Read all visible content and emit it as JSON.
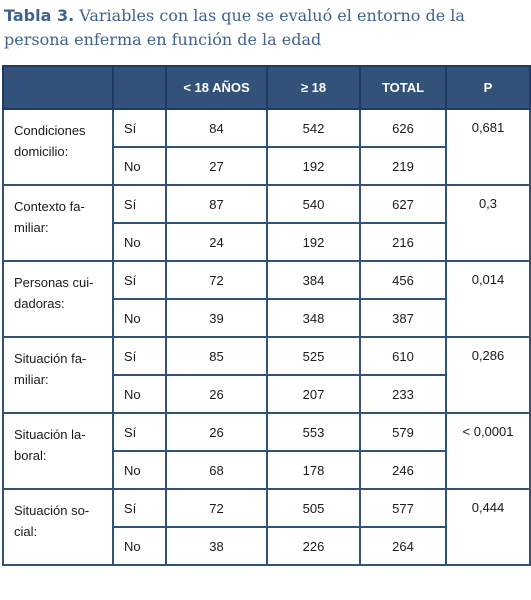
{
  "caption": {
    "label": "Tabla 3.",
    "text": " Variables con las que se evaluó el entorno de la persona enferma en función de la edad"
  },
  "headers": [
    "",
    "",
    "< 18 AÑOS",
    "≥ 18",
    "TOTAL",
    "P"
  ],
  "groups": [
    {
      "label": "Condiciones domicilio:",
      "p": "0,681",
      "rows": [
        {
          "opt": "Sí",
          "lt18": "84",
          "ge18": "542",
          "total": "626"
        },
        {
          "opt": "No",
          "lt18": "27",
          "ge18": "192",
          "total": "219"
        }
      ]
    },
    {
      "label": "Contexto fa-miliar:",
      "p": "0,3",
      "rows": [
        {
          "opt": "Sí",
          "lt18": "87",
          "ge18": "540",
          "total": "627"
        },
        {
          "opt": "No",
          "lt18": "24",
          "ge18": "192",
          "total": "216"
        }
      ]
    },
    {
      "label": "Personas cui-dadoras:",
      "p": "0,014",
      "rows": [
        {
          "opt": "Sí",
          "lt18": "72",
          "ge18": "384",
          "total": "456"
        },
        {
          "opt": "No",
          "lt18": "39",
          "ge18": "348",
          "total": "387"
        }
      ]
    },
    {
      "label": "Situación fa-miliar:",
      "p": "0,286",
      "rows": [
        {
          "opt": "Sí",
          "lt18": "85",
          "ge18": "525",
          "total": "610"
        },
        {
          "opt": "No",
          "lt18": "26",
          "ge18": "207",
          "total": "233"
        }
      ]
    },
    {
      "label": "Situación la-boral:",
      "p": "< 0,0001",
      "rows": [
        {
          "opt": "Sí",
          "lt18": "26",
          "ge18": "553",
          "total": "579"
        },
        {
          "opt": "No",
          "lt18": "68",
          "ge18": "178",
          "total": "246"
        }
      ]
    },
    {
      "label": "Situación so-cial:",
      "p": "0,444",
      "rows": [
        {
          "opt": "Sí",
          "lt18": "72",
          "ge18": "505",
          "total": "577"
        },
        {
          "opt": "No",
          "lt18": "38",
          "ge18": "226",
          "total": "264"
        }
      ]
    }
  ],
  "colors": {
    "header_bg": "#32527a",
    "caption": "#3f6391",
    "border": "#32527a"
  }
}
